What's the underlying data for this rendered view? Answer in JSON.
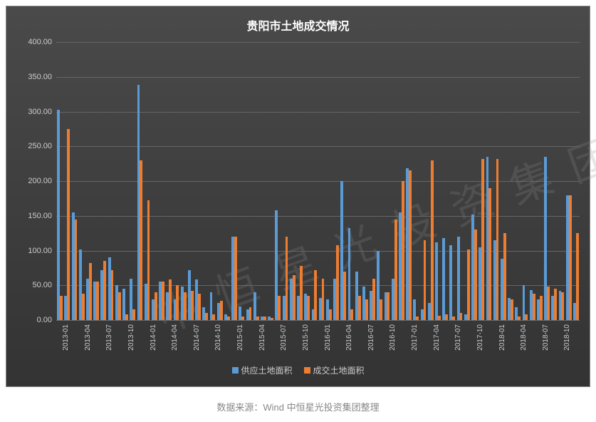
{
  "chart": {
    "title": "贵阳市土地成交情况",
    "title_fontsize": 16,
    "title_color": "#ffffff",
    "bg_gradient_top": "#4a4a4a",
    "bg_gradient_bottom": "#333333",
    "grid_color": "#666666",
    "axis_label_color": "#cccccc",
    "axis_label_fontsize": 11,
    "ylim": [
      0,
      400
    ],
    "ytick_step": 50,
    "yticks": [
      "0.00",
      "50.00",
      "100.00",
      "150.00",
      "200.00",
      "250.00",
      "300.00",
      "350.00",
      "400.00"
    ],
    "watermark_text": "中恒星光投资集团",
    "watermark_color": "rgba(140,140,140,0.22)",
    "legend": {
      "items": [
        {
          "label": "供应土地面积",
          "color": "#5b9bd5"
        },
        {
          "label": "成交土地面积",
          "color": "#ed7d31"
        }
      ]
    },
    "series_colors": {
      "supply": "#5b9bd5",
      "deal": "#ed7d31"
    },
    "x_categories": [
      "2013-01",
      "2013-02",
      "2013-03",
      "2013-04",
      "2013-05",
      "2013-06",
      "2013-07",
      "2013-08",
      "2013-09",
      "2013-10",
      "2013-11",
      "2013-12",
      "2014-01",
      "2014-02",
      "2014-03",
      "2014-04",
      "2014-05",
      "2014-06",
      "2014-07",
      "2014-08",
      "2014-09",
      "2014-10",
      "2014-11",
      "2014-12",
      "2015-01",
      "2015-02",
      "2015-03",
      "2015-04",
      "2015-05",
      "2015-06",
      "2015-07",
      "2015-08",
      "2015-09",
      "2015-10",
      "2015-11",
      "2015-12",
      "2016-01",
      "2016-02",
      "2016-03",
      "2016-04",
      "2016-05",
      "2016-06",
      "2016-07",
      "2016-08",
      "2016-09",
      "2016-10",
      "2016-11",
      "2016-12",
      "2017-01",
      "2017-02",
      "2017-03",
      "2017-04",
      "2017-05",
      "2017-06",
      "2017-07",
      "2017-08",
      "2017-09",
      "2017-10",
      "2017-11",
      "2017-12",
      "2018-01",
      "2018-02",
      "2018-03",
      "2018-04",
      "2018-05",
      "2018-06",
      "2018-07",
      "2018-08",
      "2018-09",
      "2018-10",
      "2018-11",
      "2018-12"
    ],
    "x_tick_labels": [
      "2013-01",
      "2013-04",
      "2013-07",
      "2013-10",
      "2014-01",
      "2014-04",
      "2014-07",
      "2014-10",
      "2015-01",
      "2015-04",
      "2015-07",
      "2015-10",
      "2016-01",
      "2016-04",
      "2016-07",
      "2016-10",
      "2017-01",
      "2017-04",
      "2017-07",
      "2017-10",
      "2018-01",
      "2018-04",
      "2018-07",
      "2018-10"
    ],
    "supply": [
      303,
      35,
      155,
      102,
      60,
      55,
      72,
      90,
      50,
      45,
      60,
      338,
      52,
      30,
      55,
      40,
      30,
      48,
      72,
      58,
      18,
      40,
      25,
      8,
      120,
      20,
      15,
      40,
      5,
      5,
      158,
      35,
      60,
      35,
      38,
      15,
      32,
      30,
      60,
      200,
      132,
      70,
      48,
      42,
      100,
      40,
      60,
      155,
      218,
      30,
      15,
      25,
      112,
      118,
      108,
      120,
      8,
      152,
      105,
      235,
      115,
      88,
      32,
      18,
      50,
      43,
      30,
      235,
      35,
      42,
      180,
      25
    ],
    "deal": [
      35,
      275,
      145,
      38,
      82,
      55,
      85,
      72,
      40,
      8,
      15,
      230,
      172,
      40,
      55,
      58,
      50,
      40,
      42,
      38,
      10,
      8,
      28,
      5,
      120,
      5,
      18,
      5,
      5,
      3,
      35,
      120,
      65,
      78,
      35,
      72,
      60,
      15,
      108,
      70,
      15,
      35,
      30,
      60,
      30,
      40,
      145,
      200,
      215,
      5,
      115,
      230,
      6,
      8,
      5,
      10,
      102,
      130,
      232,
      190,
      232,
      125,
      30,
      5,
      8,
      38,
      35,
      48,
      45,
      40,
      180,
      125
    ],
    "bar_width_ratio": 0.38
  },
  "source": {
    "prefix": "数据来源：",
    "text": "Wind 中恒星光投资集团整理",
    "color": "#888888",
    "fontsize": 13
  }
}
